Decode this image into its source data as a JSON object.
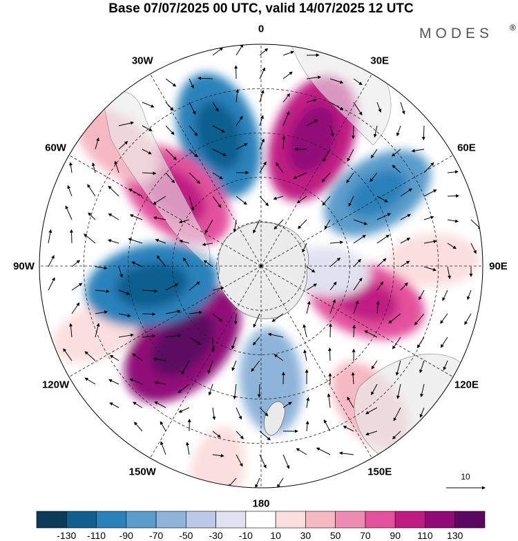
{
  "title": "Base 07/07/2025 00 UTC, valid 14/07/2025 12 UTC",
  "brand": "MODES",
  "brand_mark": "®",
  "longitude_labels": [
    {
      "text": "0",
      "lon": 0
    },
    {
      "text": "30E",
      "lon": 30
    },
    {
      "text": "60E",
      "lon": 60
    },
    {
      "text": "90E",
      "lon": 90
    },
    {
      "text": "120E",
      "lon": 120
    },
    {
      "text": "150E",
      "lon": 150
    },
    {
      "text": "180",
      "lon": 180
    },
    {
      "text": "150W",
      "lon": -150
    },
    {
      "text": "120W",
      "lon": -120
    },
    {
      "text": "90W",
      "lon": -90
    },
    {
      "text": "60W",
      "lon": -60
    },
    {
      "text": "30W",
      "lon": -30
    }
  ],
  "vector_reference": "10",
  "colorbar": {
    "ticks": [
      "-130",
      "-110",
      "-90",
      "-70",
      "-50",
      "-30",
      "-10",
      "10",
      "30",
      "50",
      "70",
      "90",
      "110",
      "130"
    ],
    "colors": [
      "#0b3b58",
      "#115f8f",
      "#2a82bb",
      "#5a9ccb",
      "#8eb4da",
      "#bcc8e6",
      "#e1e1f0",
      "#ffffff",
      "#fbdede",
      "#f6b8c3",
      "#f08bb4",
      "#e3519d",
      "#c01a83",
      "#910a78",
      "#5c0862"
    ]
  },
  "anomaly_cells": [
    {
      "lon": -18,
      "r": 0.62,
      "value": -95
    },
    {
      "lon": 22,
      "r": 0.62,
      "value": 100
    },
    {
      "lon": 58,
      "r": 0.62,
      "value": -75
    },
    {
      "lon": 88,
      "r": 0.78,
      "value": 30
    },
    {
      "lon": 108,
      "r": 0.5,
      "value": 80
    },
    {
      "lon": 142,
      "r": 0.8,
      "value": 45
    },
    {
      "lon": 175,
      "r": 0.52,
      "value": -55
    },
    {
      "lon": -135,
      "r": 0.5,
      "value": 115
    },
    {
      "lon": -112,
      "r": 0.8,
      "value": 30
    },
    {
      "lon": -100,
      "r": 0.5,
      "value": -105
    },
    {
      "lon": -50,
      "r": 0.5,
      "value": 90
    },
    {
      "lon": -50,
      "r": 0.85,
      "value": 35
    },
    {
      "lon": -168,
      "r": 0.95,
      "value": 30
    },
    {
      "lon": 95,
      "r": 0.3,
      "value": -20
    }
  ]
}
